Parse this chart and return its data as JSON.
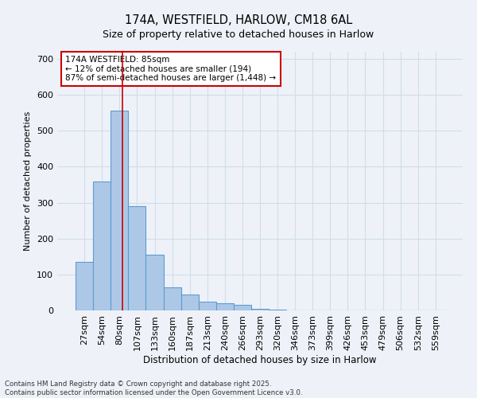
{
  "title1": "174A, WESTFIELD, HARLOW, CM18 6AL",
  "title2": "Size of property relative to detached houses in Harlow",
  "xlabel": "Distribution of detached houses by size in Harlow",
  "ylabel": "Number of detached properties",
  "categories": [
    "27sqm",
    "54sqm",
    "80sqm",
    "107sqm",
    "133sqm",
    "160sqm",
    "187sqm",
    "213sqm",
    "240sqm",
    "266sqm",
    "293sqm",
    "320sqm",
    "346sqm",
    "373sqm",
    "399sqm",
    "426sqm",
    "453sqm",
    "479sqm",
    "506sqm",
    "532sqm",
    "559sqm"
  ],
  "values": [
    135,
    360,
    555,
    290,
    155,
    65,
    45,
    25,
    20,
    15,
    5,
    2,
    0,
    0,
    0,
    0,
    0,
    0,
    0,
    0,
    0
  ],
  "bar_color": "#adc8e6",
  "bar_edge_color": "#5b9bd5",
  "grid_color": "#d0dde8",
  "background_color": "#eef2f8",
  "vline_x_index": 2.18,
  "vline_color": "#cc0000",
  "annotation_text": "174A WESTFIELD: 85sqm\n← 12% of detached houses are smaller (194)\n87% of semi-detached houses are larger (1,448) →",
  "annotation_box_color": "#ffffff",
  "annotation_box_edge": "#cc0000",
  "footer": "Contains HM Land Registry data © Crown copyright and database right 2025.\nContains public sector information licensed under the Open Government Licence v3.0.",
  "ylim": [
    0,
    720
  ],
  "yticks": [
    0,
    100,
    200,
    300,
    400,
    500,
    600,
    700
  ]
}
